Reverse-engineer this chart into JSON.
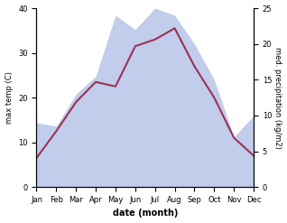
{
  "months": [
    "Jan",
    "Feb",
    "Mar",
    "Apr",
    "May",
    "Jun",
    "Jul",
    "Aug",
    "Sep",
    "Oct",
    "Nov",
    "Dec"
  ],
  "temperature": [
    6.5,
    12.5,
    19.0,
    23.5,
    22.5,
    31.5,
    33.0,
    35.5,
    27.0,
    20.0,
    11.0,
    7.0
  ],
  "precipitation": [
    9.0,
    8.5,
    13.0,
    15.5,
    24.0,
    22.0,
    25.0,
    24.0,
    20.0,
    15.0,
    7.0,
    10.0
  ],
  "temp_color": "#993355",
  "precip_fill_color": "#b8c4e8",
  "temp_ylim": [
    0,
    40
  ],
  "precip_ylim": [
    0,
    25
  ],
  "xlabel": "date (month)",
  "ylabel_left": "max temp (C)",
  "ylabel_right": "med. precipitation (kg/m2)",
  "background_color": "#ffffff",
  "fig_width": 3.18,
  "fig_height": 2.47,
  "dpi": 100,
  "xlabel_fontsize": 7,
  "ylabel_fontsize": 6,
  "tick_fontsize": 6
}
